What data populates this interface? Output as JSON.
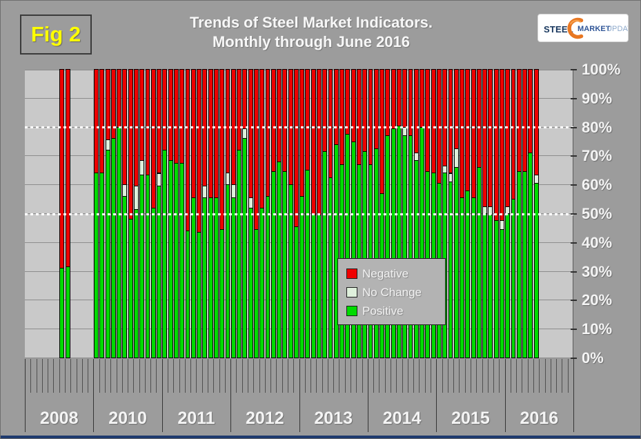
{
  "header": {
    "fig_label": "Fig 2",
    "title_line1": "Trends of Steel Market Indicators.",
    "title_line2": "Monthly through June 2016",
    "logo": {
      "word1": "STEEL",
      "word2": "MARKET",
      "word3": "UPDATE"
    }
  },
  "colors": {
    "positive": "#00DB00",
    "no_change": "#DFF0DC",
    "negative": "#EE0000",
    "page_bg": "#9C9C9C",
    "plot_bg": "#C9C9C9",
    "grid": "#8C8C8C",
    "reference_line": "#FFFFFF",
    "fig_label_color": "#FFFF00",
    "legend_bg": "#B3B3B3",
    "bottom_strip": "#1E3A6E",
    "logo_orange": "#E87722"
  },
  "y_axis": {
    "tick_labels": [
      "100%",
      "90%",
      "80%",
      "70%",
      "60%",
      "50%",
      "40%",
      "30%",
      "20%",
      "10%",
      "0%"
    ],
    "tick_values": [
      100,
      90,
      80,
      70,
      60,
      50,
      40,
      30,
      20,
      10,
      0
    ]
  },
  "x_axis": {
    "year_labels": [
      "2008",
      "2010",
      "2011",
      "2012",
      "2013",
      "2014",
      "2015",
      "2016"
    ]
  },
  "legend": {
    "items": [
      {
        "label": "Negative",
        "key": "negative"
      },
      {
        "label": "No Change",
        "key": "no_change"
      },
      {
        "label": "Positive",
        "key": "positive"
      }
    ]
  },
  "chart_data": {
    "type": "bar",
    "stacked": true,
    "unit": "percent",
    "title": "Trends of Steel Market Indicators. Monthly through June 2016",
    "ylim": [
      0,
      100
    ],
    "grid": true,
    "reference_lines_pct": [
      80,
      50
    ],
    "legend_position": "inside-lower-middle",
    "series_order": [
      "positive",
      "no_change",
      "negative"
    ],
    "bars": [
      {
        "year": 2008,
        "month": 7,
        "positive": 31,
        "no_change": 0,
        "negative": 69
      },
      {
        "year": 2008,
        "month": 8,
        "positive": 31.5,
        "no_change": 0,
        "negative": 68.5
      },
      {
        "year": 2010,
        "month": 1,
        "positive": 64,
        "no_change": 0,
        "negative": 36
      },
      {
        "year": 2010,
        "month": 2,
        "positive": 64,
        "no_change": 0,
        "negative": 36
      },
      {
        "year": 2010,
        "month": 3,
        "positive": 72,
        "no_change": 3.5,
        "negative": 24.5
      },
      {
        "year": 2010,
        "month": 4,
        "positive": 76,
        "no_change": 0,
        "negative": 24
      },
      {
        "year": 2010,
        "month": 5,
        "positive": 80,
        "no_change": 0,
        "negative": 20
      },
      {
        "year": 2010,
        "month": 6,
        "positive": 56,
        "no_change": 4,
        "negative": 40
      },
      {
        "year": 2010,
        "month": 7,
        "positive": 48,
        "no_change": 0,
        "negative": 52
      },
      {
        "year": 2010,
        "month": 8,
        "positive": 51.5,
        "no_change": 8,
        "negative": 40.5
      },
      {
        "year": 2010,
        "month": 9,
        "positive": 63.5,
        "no_change": 5,
        "negative": 31.5
      },
      {
        "year": 2010,
        "month": 10,
        "positive": 63.5,
        "no_change": 0,
        "negative": 36.5
      },
      {
        "year": 2010,
        "month": 11,
        "positive": 52,
        "no_change": 0,
        "negative": 48
      },
      {
        "year": 2010,
        "month": 12,
        "positive": 59.5,
        "no_change": 4.5,
        "negative": 36
      },
      {
        "year": 2011,
        "month": 1,
        "positive": 72,
        "no_change": 0,
        "negative": 28
      },
      {
        "year": 2011,
        "month": 2,
        "positive": 68.5,
        "no_change": 0,
        "negative": 31.5
      },
      {
        "year": 2011,
        "month": 3,
        "positive": 67.5,
        "no_change": 0,
        "negative": 32.5
      },
      {
        "year": 2011,
        "month": 4,
        "positive": 67.5,
        "no_change": 0,
        "negative": 32.5
      },
      {
        "year": 2011,
        "month": 5,
        "positive": 44,
        "no_change": 0,
        "negative": 56
      },
      {
        "year": 2011,
        "month": 6,
        "positive": 55.5,
        "no_change": 0,
        "negative": 44.5
      },
      {
        "year": 2011,
        "month": 7,
        "positive": 43.5,
        "no_change": 0,
        "negative": 56.5
      },
      {
        "year": 2011,
        "month": 8,
        "positive": 55.5,
        "no_change": 4,
        "negative": 40.5
      },
      {
        "year": 2011,
        "month": 9,
        "positive": 55.5,
        "no_change": 0,
        "negative": 44.5
      },
      {
        "year": 2011,
        "month": 10,
        "positive": 55.5,
        "no_change": 0,
        "negative": 44.5
      },
      {
        "year": 2011,
        "month": 11,
        "positive": 44.5,
        "no_change": 0,
        "negative": 55.5
      },
      {
        "year": 2011,
        "month": 12,
        "positive": 60,
        "no_change": 4,
        "negative": 36
      },
      {
        "year": 2012,
        "month": 1,
        "positive": 55.5,
        "no_change": 4.5,
        "negative": 40
      },
      {
        "year": 2012,
        "month": 2,
        "positive": 72,
        "no_change": 0,
        "negative": 28
      },
      {
        "year": 2012,
        "month": 3,
        "positive": 76,
        "no_change": 3.5,
        "negative": 20.5
      },
      {
        "year": 2012,
        "month": 4,
        "positive": 52,
        "no_change": 3.5,
        "negative": 44.5
      },
      {
        "year": 2012,
        "month": 5,
        "positive": 44.5,
        "no_change": 0,
        "negative": 55.5
      },
      {
        "year": 2012,
        "month": 6,
        "positive": 52,
        "no_change": 0,
        "negative": 48
      },
      {
        "year": 2012,
        "month": 7,
        "positive": 56,
        "no_change": 0,
        "negative": 44
      },
      {
        "year": 2012,
        "month": 8,
        "positive": 64.5,
        "no_change": 0,
        "negative": 35.5
      },
      {
        "year": 2012,
        "month": 9,
        "positive": 68,
        "no_change": 0,
        "negative": 32
      },
      {
        "year": 2012,
        "month": 10,
        "positive": 64.5,
        "no_change": 0,
        "negative": 35.5
      },
      {
        "year": 2012,
        "month": 11,
        "positive": 60,
        "no_change": 0,
        "negative": 40
      },
      {
        "year": 2012,
        "month": 12,
        "positive": 45.5,
        "no_change": 0,
        "negative": 54.5
      },
      {
        "year": 2013,
        "month": 1,
        "positive": 56,
        "no_change": 0,
        "negative": 44
      },
      {
        "year": 2013,
        "month": 2,
        "positive": 65,
        "no_change": 0,
        "negative": 35
      },
      {
        "year": 2013,
        "month": 3,
        "positive": 49.5,
        "no_change": 0,
        "negative": 50.5
      },
      {
        "year": 2013,
        "month": 4,
        "positive": 49.5,
        "no_change": 0,
        "negative": 50.5
      },
      {
        "year": 2013,
        "month": 5,
        "positive": 71.5,
        "no_change": 0,
        "negative": 28.5
      },
      {
        "year": 2013,
        "month": 6,
        "positive": 62.5,
        "no_change": 0,
        "negative": 37.5
      },
      {
        "year": 2013,
        "month": 7,
        "positive": 74,
        "no_change": 0,
        "negative": 26
      },
      {
        "year": 2013,
        "month": 8,
        "positive": 67,
        "no_change": 0,
        "negative": 33
      },
      {
        "year": 2013,
        "month": 9,
        "positive": 77.5,
        "no_change": 0,
        "negative": 22.5
      },
      {
        "year": 2013,
        "month": 10,
        "positive": 75,
        "no_change": 0,
        "negative": 25
      },
      {
        "year": 2013,
        "month": 11,
        "positive": 67,
        "no_change": 0,
        "negative": 33
      },
      {
        "year": 2013,
        "month": 12,
        "positive": 71.5,
        "no_change": 0,
        "negative": 28.5
      },
      {
        "year": 2014,
        "month": 1,
        "positive": 67,
        "no_change": 0,
        "negative": 33
      },
      {
        "year": 2014,
        "month": 2,
        "positive": 72.5,
        "no_change": 0,
        "negative": 27.5
      },
      {
        "year": 2014,
        "month": 3,
        "positive": 57,
        "no_change": 0,
        "negative": 43
      },
      {
        "year": 2014,
        "month": 4,
        "positive": 77,
        "no_change": 0,
        "negative": 23
      },
      {
        "year": 2014,
        "month": 5,
        "positive": 79.5,
        "no_change": 0,
        "negative": 20.5
      },
      {
        "year": 2014,
        "month": 6,
        "positive": 80.5,
        "no_change": 0,
        "negative": 19.5
      },
      {
        "year": 2014,
        "month": 7,
        "positive": 77,
        "no_change": 3,
        "negative": 20
      },
      {
        "year": 2014,
        "month": 8,
        "positive": 77,
        "no_change": 0,
        "negative": 23
      },
      {
        "year": 2014,
        "month": 9,
        "positive": 68.5,
        "no_change": 2.5,
        "negative": 29
      },
      {
        "year": 2014,
        "month": 10,
        "positive": 80,
        "no_change": 0,
        "negative": 20
      },
      {
        "year": 2014,
        "month": 11,
        "positive": 64.5,
        "no_change": 0,
        "negative": 35.5
      },
      {
        "year": 2014,
        "month": 12,
        "positive": 64,
        "no_change": 0,
        "negative": 36
      },
      {
        "year": 2015,
        "month": 1,
        "positive": 60.5,
        "no_change": 0,
        "negative": 39.5
      },
      {
        "year": 2015,
        "month": 2,
        "positive": 64,
        "no_change": 2.5,
        "negative": 33.5
      },
      {
        "year": 2015,
        "month": 3,
        "positive": 61,
        "no_change": 3,
        "negative": 36
      },
      {
        "year": 2015,
        "month": 4,
        "positive": 66,
        "no_change": 6.5,
        "negative": 27.5
      },
      {
        "year": 2015,
        "month": 5,
        "positive": 55.5,
        "no_change": 0,
        "negative": 44.5
      },
      {
        "year": 2015,
        "month": 6,
        "positive": 58,
        "no_change": 0,
        "negative": 42
      },
      {
        "year": 2015,
        "month": 7,
        "positive": 55.5,
        "no_change": 0,
        "negative": 44.5
      },
      {
        "year": 2015,
        "month": 8,
        "positive": 66,
        "no_change": 0,
        "negative": 34
      },
      {
        "year": 2015,
        "month": 9,
        "positive": 50,
        "no_change": 2.5,
        "negative": 47.5
      },
      {
        "year": 2015,
        "month": 10,
        "positive": 49.5,
        "no_change": 3,
        "negative": 47.5
      },
      {
        "year": 2015,
        "month": 11,
        "positive": 47.5,
        "no_change": 0,
        "negative": 52.5
      },
      {
        "year": 2015,
        "month": 12,
        "positive": 44.5,
        "no_change": 3,
        "negative": 52.5
      },
      {
        "year": 2016,
        "month": 1,
        "positive": 50,
        "no_change": 2.5,
        "negative": 47.5
      },
      {
        "year": 2016,
        "month": 2,
        "positive": 55,
        "no_change": 0,
        "negative": 45
      },
      {
        "year": 2016,
        "month": 3,
        "positive": 64.5,
        "no_change": 0,
        "negative": 35.5
      },
      {
        "year": 2016,
        "month": 4,
        "positive": 64.5,
        "no_change": 0,
        "negative": 35.5
      },
      {
        "year": 2016,
        "month": 5,
        "positive": 71,
        "no_change": 0,
        "negative": 29
      },
      {
        "year": 2016,
        "month": 6,
        "positive": 60.5,
        "no_change": 3,
        "negative": 36.5
      }
    ]
  }
}
